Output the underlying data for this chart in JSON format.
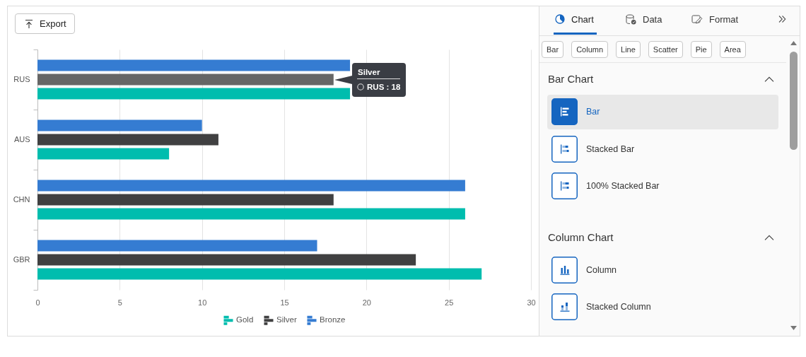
{
  "chart_data": [
    {
      "type": "bar",
      "orientation": "horizontal",
      "categories": [
        "RUS",
        "AUS",
        "CHN",
        "GBR"
      ],
      "series": [
        {
          "name": "Gold",
          "color": "#00bdae",
          "values": [
            19,
            8,
            26,
            27
          ]
        },
        {
          "name": "Silver",
          "color": "#404041",
          "colors": [
            "#666666",
            "#404041",
            "#404041",
            "#404041"
          ],
          "values": [
            18,
            11,
            18,
            23
          ]
        },
        {
          "name": "Bronze",
          "color": "#357cd2",
          "values": [
            19,
            10,
            26,
            17
          ]
        }
      ],
      "xlim": [
        0,
        30
      ],
      "xticks": [
        0,
        5,
        10,
        15,
        20,
        25,
        30
      ],
      "grid": "x",
      "legend": "bottom",
      "annotations": [
        "Export",
        {
          "text": "Silver",
          "x": 18,
          "y": "RUS"
        },
        {
          "text": "RUS : 18",
          "x": 18,
          "y": "RUS"
        }
      ]
    },
    {
      "type": "other",
      "annotations": [
        "Chart",
        "Data",
        "Format",
        "Bar",
        "Column",
        "Line",
        "Scatter",
        "Pie",
        "Area",
        "Bar Chart",
        "Bar",
        "Stacked Bar",
        "100% Stacked Bar",
        "Column Chart",
        "Column",
        "Stacked Column"
      ]
    }
  ]
}
